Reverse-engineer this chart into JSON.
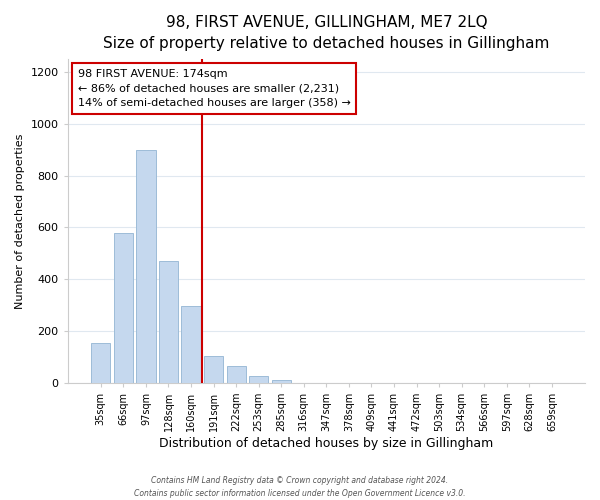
{
  "title": "98, FIRST AVENUE, GILLINGHAM, ME7 2LQ",
  "subtitle": "Size of property relative to detached houses in Gillingham",
  "xlabel": "Distribution of detached houses by size in Gillingham",
  "ylabel": "Number of detached properties",
  "bar_labels": [
    "35sqm",
    "66sqm",
    "97sqm",
    "128sqm",
    "160sqm",
    "191sqm",
    "222sqm",
    "253sqm",
    "285sqm",
    "316sqm",
    "347sqm",
    "378sqm",
    "409sqm",
    "441sqm",
    "472sqm",
    "503sqm",
    "534sqm",
    "566sqm",
    "597sqm",
    "628sqm",
    "659sqm"
  ],
  "bar_values": [
    155,
    580,
    900,
    470,
    295,
    105,
    65,
    28,
    10,
    0,
    0,
    0,
    0,
    0,
    0,
    0,
    0,
    0,
    0,
    0,
    0
  ],
  "bar_color": "#c5d8ee",
  "bar_edge_color": "#9dbcd8",
  "vline_color": "#cc0000",
  "annotation_text": "98 FIRST AVENUE: 174sqm\n← 86% of detached houses are smaller (2,231)\n14% of semi-detached houses are larger (358) →",
  "annotation_box_color": "#ffffff",
  "annotation_box_edge": "#cc0000",
  "ylim": [
    0,
    1250
  ],
  "yticks": [
    0,
    200,
    400,
    600,
    800,
    1000,
    1200
  ],
  "footer_line1": "Contains HM Land Registry data © Crown copyright and database right 2024.",
  "footer_line2": "Contains public sector information licensed under the Open Government Licence v3.0.",
  "background_color": "#ffffff",
  "plot_background": "#ffffff",
  "grid_color": "#e0e8f0",
  "title_fontsize": 11,
  "subtitle_fontsize": 9.5,
  "ylabel_fontsize": 8,
  "xlabel_fontsize": 9,
  "tick_fontsize": 8,
  "xtick_fontsize": 7,
  "annot_fontsize": 8
}
